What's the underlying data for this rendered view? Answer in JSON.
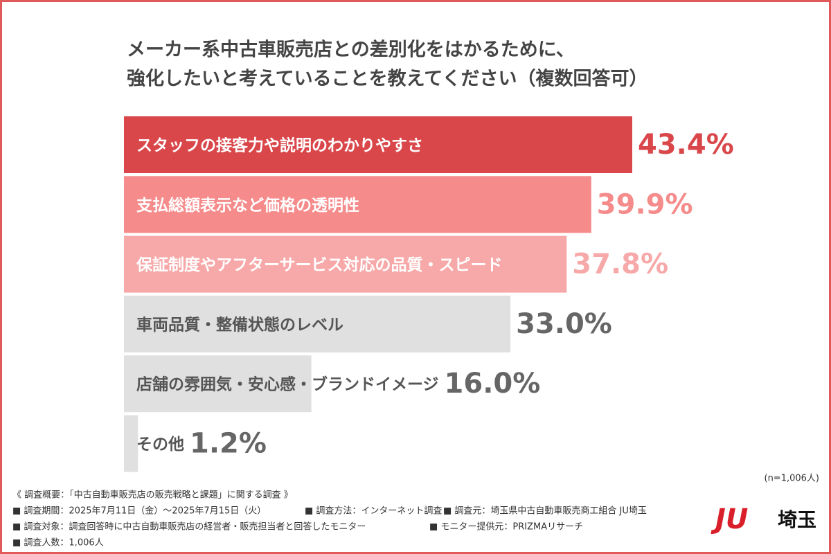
{
  "chart_data": {
    "type": "bar",
    "orientation": "horizontal",
    "title_lines": [
      "メーカー系中古車販売店との差別化をはかるために、",
      "強化したいと考えていることを教えてください（複数回答可）"
    ],
    "categories": [
      "スタッフの接客力や説明のわかりやすさ",
      "支払総額表示など価格の透明性",
      "保証制度やアフターサービス対応の品質・スピード",
      "車両品質・整備状態のレベル",
      "店舗の雰囲気・安心感・ブランドイメージ",
      "その他"
    ],
    "values": [
      43.4,
      39.9,
      37.8,
      33.0,
      16.0,
      1.2
    ],
    "value_labels": [
      "43.4%",
      "39.9%",
      "37.8%",
      "33.0%",
      "16.0%",
      "1.2%"
    ],
    "colors": [
      "#d9474b",
      "#f58b8b",
      "#f7a9a9",
      "#e0e0e0",
      "#e0e0e0",
      "#e0e0e0"
    ],
    "label_colors": [
      "#ffffff",
      "#ffffff",
      "#ffffff",
      "#555555",
      "#555555",
      "#555555"
    ],
    "value_label_colors": [
      "#d9474b",
      "#f58b8b",
      "#f7a9a9",
      "#666666",
      "#666666",
      "#666666"
    ],
    "sample_note": "(n=1,006人)"
  },
  "notes": {
    "heading": "《 調査概要：「中古自動車販売店の販売戦略と課題」に関する調査 》",
    "items": [
      "■ 調査期間：2025年7月11日（金）〜2025年7月15日（火）",
      "■ 調査方法：インターネット調査",
      "■ 調査元：埼玉県中古自動車販売商工組合 JU埼玉",
      "■ 調査対象：調査回答時に中古自動車販売店の経営者・販売担当者と回答したモニター",
      "■ モニター提供元：PRIZMAリサーチ",
      "■ 調査人数：1,006人"
    ]
  },
  "logo": {
    "mark": "JU",
    "text": "埼玉"
  }
}
